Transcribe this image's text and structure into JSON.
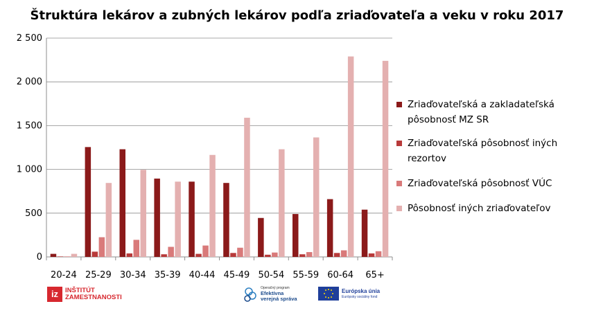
{
  "chart_data": {
    "type": "bar",
    "title": "Štruktúra lekárov a zubných lekárov podľa zriaďovateľa a veku v roku 2017",
    "categories": [
      "20-24",
      "25-29",
      "30-34",
      "35-39",
      "40-44",
      "45-49",
      "50-54",
      "55-59",
      "60-64",
      "65+"
    ],
    "ylim": [
      0,
      2500
    ],
    "yticks": [
      "0",
      "500",
      "1 000",
      "1 500",
      "2 000",
      "2 500"
    ],
    "ytick_values": [
      0,
      500,
      1000,
      1500,
      2000,
      2500
    ],
    "grid": true,
    "legend_position": "right",
    "series": [
      {
        "name": "Zriaďovateľská a zakladateľská pôsobnosť MZ SR",
        "color": "#8b1a1a",
        "values": [
          35,
          1255,
          1230,
          895,
          860,
          845,
          445,
          490,
          660,
          540
        ]
      },
      {
        "name": "Zriaďovateľská pôsobnosť iných rezortov",
        "color": "#b83a3a",
        "values": [
          5,
          60,
          40,
          30,
          35,
          45,
          25,
          30,
          45,
          40
        ]
      },
      {
        "name": "Zriaďovateľská pôsobnosť VÚC",
        "color": "#d97a7a",
        "values": [
          5,
          225,
          195,
          115,
          130,
          105,
          50,
          55,
          75,
          65
        ]
      },
      {
        "name": "Pôsobnosť iných zriaďovateľov",
        "color": "#e4b0b0",
        "values": [
          35,
          845,
          995,
          860,
          1165,
          1590,
          1230,
          1365,
          2290,
          2240
        ]
      }
    ]
  },
  "legend_lines": [
    [
      "Zriaďovateľská a zakladateľská",
      "pôsobnosť MZ SR"
    ],
    [
      "Zriaďovateľská pôsobnosť iných rezortov"
    ],
    [
      "Zriaďovateľská pôsobnosť VÚC"
    ],
    [
      "Pôsobnosť iných zriaďovateľov"
    ]
  ],
  "logos": {
    "iz_box": "iz",
    "iz_line1": "INŠTITÚT",
    "iz_line2": "ZAMESTNANOSTI",
    "oper_small": "Operačný program",
    "oper_line1": "Efektívna",
    "oper_line2": "verejná správa",
    "eu_line1": "Európska únia",
    "eu_line2": "Európsky sociálny fond"
  }
}
